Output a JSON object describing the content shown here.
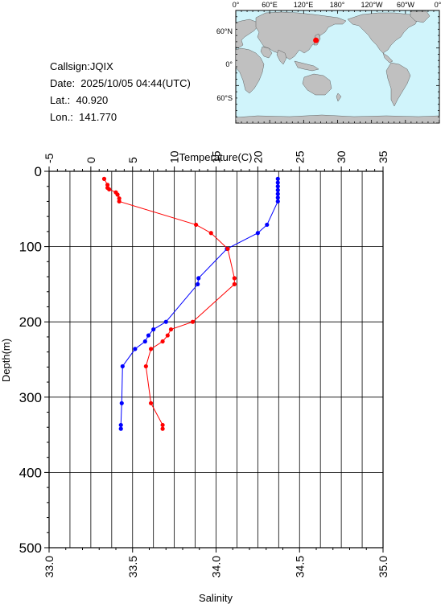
{
  "station": {
    "callsign": "Callsign:JQIX",
    "date": "Date:  2025/10/05 04:44(UTC)",
    "lat": "Lat.:  40.920",
    "lon": "Lon.:  141.770"
  },
  "map": {
    "top_labels": [
      "0°",
      "60°E",
      "120°E",
      "180°",
      "120°W",
      "60°W",
      "0°"
    ],
    "left_labels": [
      "60°N",
      "0°",
      "60°S"
    ],
    "ocean_color": "#d0f4fb",
    "land_color": "#c0c0c0",
    "marker_color": "#ff0000",
    "marker_lon": 141.77,
    "marker_lat": 40.92
  },
  "chart_data": {
    "type": "scatter",
    "xlabel_top": "Temperature(C)",
    "xlabel_bottom": "Salinity",
    "ylabel": "Depth(m)",
    "temperature_range": [
      -5,
      35
    ],
    "temperature_ticks": [
      "-5",
      "0",
      "5",
      "10",
      "15",
      "20",
      "25",
      "30",
      "35"
    ],
    "salinity_range": [
      33.0,
      35.0
    ],
    "salinity_ticks": [
      "33.0",
      "33.5",
      "34.0",
      "34.5",
      "35.0"
    ],
    "depth_range": [
      0,
      500
    ],
    "depth_ticks": [
      "0",
      "100",
      "200",
      "300",
      "400",
      "500"
    ],
    "grid": true,
    "series": [
      {
        "axis": "temperature",
        "color": "#0000ff",
        "points": [
          [
            22.4,
            10
          ],
          [
            22.4,
            15
          ],
          [
            22.4,
            20
          ],
          [
            22.4,
            25
          ],
          [
            22.4,
            30
          ],
          [
            22.4,
            35
          ],
          [
            22.4,
            40
          ],
          [
            21.1,
            71
          ],
          [
            20.0,
            82
          ],
          [
            16.3,
            103
          ],
          [
            12.9,
            142
          ],
          [
            12.8,
            150
          ],
          [
            9.0,
            200
          ],
          [
            7.5,
            210
          ],
          [
            6.9,
            218
          ],
          [
            6.5,
            226
          ],
          [
            5.3,
            236
          ],
          [
            3.8,
            259
          ],
          [
            3.7,
            308
          ],
          [
            3.6,
            337
          ],
          [
            3.6,
            342
          ]
        ]
      },
      {
        "axis": "salinity",
        "color": "#ff0000",
        "points": [
          [
            33.33,
            10
          ],
          [
            33.35,
            18
          ],
          [
            33.35,
            22
          ],
          [
            33.36,
            24
          ],
          [
            33.4,
            28
          ],
          [
            33.41,
            31
          ],
          [
            33.42,
            36
          ],
          [
            33.42,
            40
          ],
          [
            33.88,
            71
          ],
          [
            33.97,
            82
          ],
          [
            34.07,
            103
          ],
          [
            34.11,
            142
          ],
          [
            34.11,
            150
          ],
          [
            33.86,
            200
          ],
          [
            33.73,
            210
          ],
          [
            33.71,
            218
          ],
          [
            33.68,
            226
          ],
          [
            33.61,
            236
          ],
          [
            33.58,
            259
          ],
          [
            33.61,
            308
          ],
          [
            33.68,
            337
          ],
          [
            33.68,
            342
          ]
        ]
      }
    ]
  }
}
